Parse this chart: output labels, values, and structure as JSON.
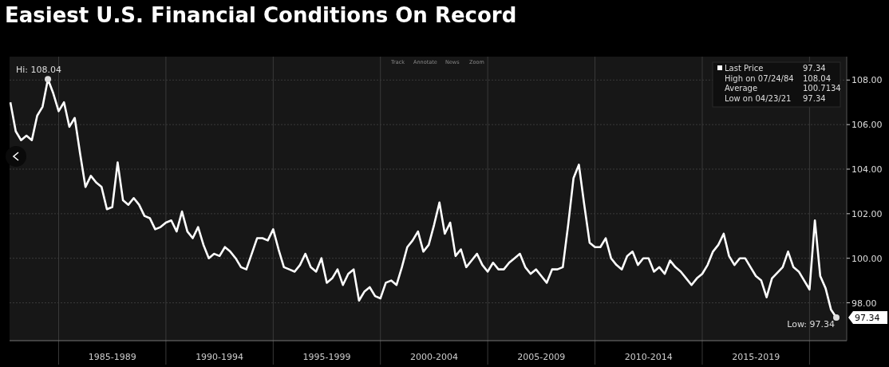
{
  "chart_data": {
    "type": "line",
    "title": "Easiest U.S. Financial Conditions On Record",
    "categories": [
      null,
      null,
      null,
      null,
      null,
      null,
      null,
      null,
      null,
      null,
      null,
      null,
      null,
      null,
      null,
      null,
      null,
      null,
      null,
      "1985-1989",
      null,
      null,
      null,
      null,
      null,
      null,
      null,
      null,
      null,
      null,
      null,
      null,
      null,
      null,
      null,
      null,
      null,
      null,
      null,
      "1990-1994",
      null,
      null,
      null,
      null,
      null,
      null,
      null,
      null,
      null,
      null,
      null,
      null,
      null,
      null,
      null,
      null,
      null,
      null,
      null,
      "1995-1999",
      null,
      null,
      null,
      null,
      null,
      null,
      null,
      null,
      null,
      null,
      null,
      null,
      null,
      null,
      null,
      null,
      null,
      null,
      null,
      "2000-2004",
      null,
      null,
      null,
      null,
      null,
      null,
      null,
      null,
      null,
      null,
      null,
      null,
      null,
      null,
      null,
      null,
      null,
      null,
      null,
      "2005-2009",
      null,
      null,
      null,
      null,
      null,
      null,
      null,
      null,
      null,
      null,
      null,
      null,
      null,
      null,
      null,
      null,
      null,
      null,
      null,
      "2010-2014",
      null,
      null,
      null,
      null,
      null,
      null,
      null,
      null,
      null,
      null,
      null,
      null,
      null,
      null,
      null,
      null,
      null,
      null,
      null,
      "2015-2019",
      null,
      null,
      null,
      null,
      null,
      null,
      null,
      null,
      null,
      null,
      null,
      null,
      null,
      null,
      null
    ],
    "series": [
      {
        "color": "#ffffff",
        "values": [
          107.0,
          105.7,
          105.3,
          105.5,
          105.3,
          106.4,
          106.8,
          108.04,
          107.4,
          106.6,
          107.0,
          105.9,
          106.3,
          104.7,
          103.2,
          103.7,
          103.4,
          103.2,
          102.2,
          102.3,
          104.3,
          102.6,
          102.4,
          102.7,
          102.4,
          101.9,
          101.8,
          101.3,
          101.4,
          101.6,
          101.7,
          101.2,
          102.1,
          101.2,
          100.9,
          101.4,
          100.6,
          100.0,
          100.2,
          100.1,
          100.5,
          100.3,
          100.0,
          99.6,
          99.5,
          100.2,
          100.9,
          100.9,
          100.8,
          101.3,
          100.4,
          99.6,
          99.5,
          99.4,
          99.7,
          100.2,
          99.6,
          99.4,
          100.0,
          98.9,
          99.1,
          99.5,
          98.8,
          99.3,
          99.5,
          98.1,
          98.5,
          98.7,
          98.3,
          98.2,
          98.9,
          99.0,
          98.8,
          99.6,
          100.5,
          100.8,
          101.2,
          100.3,
          100.6,
          101.5,
          102.5,
          101.1,
          101.6,
          100.1,
          100.4,
          99.6,
          99.9,
          100.2,
          99.7,
          99.4,
          99.8,
          99.5,
          99.5,
          99.8,
          100.0,
          100.2,
          99.6,
          99.3,
          99.5,
          99.2,
          98.9,
          99.5,
          99.5,
          99.6,
          101.5,
          103.6,
          104.2,
          102.4,
          100.7,
          100.5,
          100.5,
          100.9,
          100.0,
          99.7,
          99.5,
          100.1,
          100.3,
          99.7,
          100.0,
          100.0,
          99.4,
          99.6,
          99.3,
          99.9,
          99.6,
          99.4,
          99.1,
          98.8,
          99.1,
          99.3,
          99.7,
          100.3,
          100.6,
          101.1,
          100.1,
          99.7,
          100.0,
          100.0,
          99.6,
          99.2,
          99.0,
          98.25,
          99.1,
          99.35,
          99.6,
          100.3,
          99.6,
          99.4,
          99.0,
          98.6,
          101.7,
          99.2,
          98.65,
          97.7,
          97.34
        ]
      }
    ],
    "ylim": [
      96.3,
      109.05
    ],
    "yticks": [
      {
        "value": 98,
        "label": "98.00"
      },
      {
        "value": 100,
        "label": "100.00"
      },
      {
        "value": 102,
        "label": "102.00"
      },
      {
        "value": 104,
        "label": "104.00"
      },
      {
        "value": 106,
        "label": "106.00"
      },
      {
        "value": 108,
        "label": "108.00"
      }
    ],
    "grid": true,
    "line_style": "solid",
    "marker": "none",
    "annotations": [
      "Hi: 108.04",
      "Low: 97.34",
      "97.34",
      "Last Price",
      "97.34",
      "High on 07/24/84",
      "108.04",
      "Average",
      "100.7134",
      "Low on 04/23/21",
      "97.34",
      "Track",
      "Annotate",
      "News",
      "Zoom"
    ]
  }
}
